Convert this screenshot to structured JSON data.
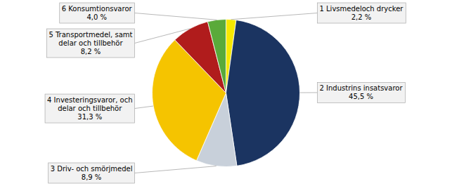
{
  "chart_data": {
    "type": "pie",
    "categories": [
      "1 Livsmedeloch drycker",
      "2 Industrins insatsvaror",
      "3 Driv- och smörjmedel",
      "4 Investeringsvaror, och\ndelar och tillbehör",
      "5 Transportmedel, samt\ndelar och tillbehör",
      "6 Konsumtionsvaror"
    ],
    "values": [
      2.2,
      45.5,
      8.9,
      31.3,
      8.2,
      4.0
    ],
    "value_labels": [
      "2,2 %",
      "45,5 %",
      "8,9 %",
      "31,3 %",
      "8,2 %",
      "4,0 %"
    ],
    "colors": [
      "#f7e800",
      "#1b3461",
      "#c8d0da",
      "#f5c400",
      "#b01c1c",
      "#5aaa3a"
    ],
    "data_labels": true
  }
}
